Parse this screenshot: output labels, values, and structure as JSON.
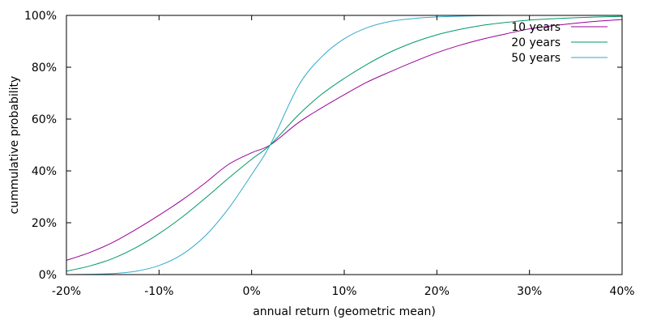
{
  "chart_data": {
    "type": "line",
    "title": "",
    "xlabel": "annual return (geometric mean)",
    "ylabel": "cummulative probability",
    "xlim": [
      -20,
      40
    ],
    "ylim": [
      0,
      100
    ],
    "x_unit": "%",
    "y_unit": "%",
    "x_ticks": [
      "-20%",
      "-10%",
      "0%",
      "10%",
      "20%",
      "30%",
      "40%"
    ],
    "y_ticks": [
      "0%",
      "20%",
      "40%",
      "60%",
      "80%",
      "100%"
    ],
    "grid": false,
    "legend_position": "top-right",
    "x": [
      -20,
      -17.5,
      -15,
      -12.5,
      -10,
      -7.5,
      -5,
      -2.5,
      0,
      2,
      5,
      7.5,
      10,
      12.5,
      15,
      17.5,
      20,
      22.5,
      25,
      27.5,
      30,
      32.5,
      35,
      37.5,
      40
    ],
    "series": [
      {
        "name": "10 years",
        "color": "#990099",
        "values": [
          5.5,
          8.5,
          12.4,
          17.4,
          22.9,
          28.8,
          35.4,
          42.5,
          47.0,
          50.0,
          58.5,
          64.2,
          69.4,
          74.3,
          78.3,
          82.1,
          85.6,
          88.5,
          90.9,
          92.9,
          94.8,
          96.0,
          97.0,
          97.8,
          98.4
        ]
      },
      {
        "name": "20 years",
        "color": "#009966",
        "values": [
          1.3,
          3.3,
          6.2,
          10.4,
          15.8,
          22.2,
          29.5,
          37.2,
          44.5,
          50.0,
          61.4,
          69.4,
          75.7,
          81.2,
          85.9,
          89.6,
          92.5,
          94.6,
          96.2,
          97.3,
          98.2,
          98.7,
          99.1,
          99.4,
          99.6
        ]
      },
      {
        "name": "50 years",
        "color": "#33aacc",
        "values": [
          0.0,
          0.1,
          0.4,
          1.3,
          3.5,
          7.8,
          15.0,
          25.5,
          38.6,
          50.0,
          72.5,
          83.8,
          91.0,
          95.3,
          97.7,
          98.8,
          99.4,
          99.7,
          99.9,
          100.0,
          100.0,
          100.0,
          100.0,
          100.0,
          100.0
        ]
      }
    ]
  }
}
